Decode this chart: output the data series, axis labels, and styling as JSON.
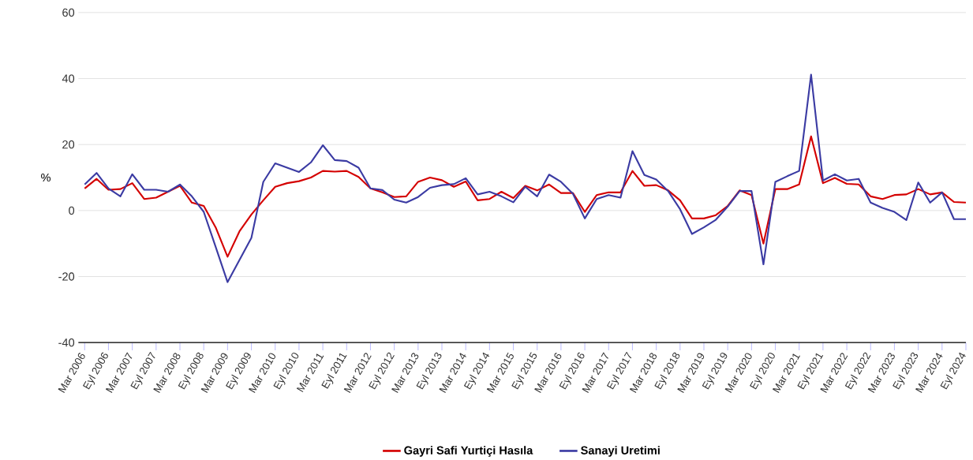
{
  "chart_data": {
    "type": "line",
    "ylabel": "%",
    "categories": [
      "Mar 2006",
      null,
      "Eyl 2006",
      null,
      "Mar 2007",
      null,
      "Eyl 2007",
      null,
      "Mar 2008",
      null,
      "Eyl 2008",
      null,
      "Mar 2009",
      null,
      "Eyl 2009",
      null,
      "Mar 2010",
      null,
      "Eyl 2010",
      null,
      "Mar 2011",
      null,
      "Eyl 2011",
      null,
      "Mar 2012",
      null,
      "Eyl 2012",
      null,
      "Mar 2013",
      null,
      "Eyl 2013",
      null,
      "Mar 2014",
      null,
      "Eyl 2014",
      null,
      "Mar 2015",
      null,
      "Eyl 2015",
      null,
      "Mar 2016",
      null,
      "Eyl 2016",
      null,
      "Mar 2017",
      null,
      "Eyl 2017",
      null,
      "Mar 2018",
      null,
      "Eyl 2018",
      null,
      "Mar 2019",
      null,
      "Eyl 2019",
      null,
      "Mar 2020",
      null,
      "Eyl 2020",
      null,
      "Mar 2021",
      null,
      "Eyl 2021",
      null,
      "Mar 2022",
      null,
      "Eyl 2022",
      null,
      "Mar 2023",
      null,
      "Eyl 2023",
      null,
      "Mar 2024",
      null,
      "Eyl 2024"
    ],
    "series": [
      {
        "name": "Gayri Safi Yurtiçi Hasıla",
        "color": "#d40000",
        "values": [
          6.7,
          9.6,
          6.3,
          6.5,
          8.3,
          3.5,
          3.9,
          5.7,
          7.5,
          2.4,
          1.4,
          -5.1,
          -14.0,
          -6.3,
          -1.2,
          3.1,
          7.2,
          8.3,
          8.9,
          10.0,
          12.0,
          11.8,
          12.0,
          10.2,
          6.7,
          5.5,
          4.1,
          4.3,
          8.7,
          10.0,
          9.2,
          7.2,
          8.8,
          3.1,
          3.5,
          5.7,
          3.8,
          7.5,
          6.1,
          7.9,
          5.3,
          5.3,
          -0.4,
          4.7,
          5.5,
          5.5,
          12.0,
          7.5,
          7.7,
          6.1,
          3.1,
          -2.4,
          -2.4,
          -1.4,
          1.4,
          6.1,
          4.7,
          -10.0,
          6.5,
          6.5,
          7.9,
          22.5,
          8.3,
          9.9,
          8.1,
          7.9,
          4.3,
          3.5,
          4.7,
          4.9,
          6.5,
          4.9,
          5.5,
          2.6,
          2.4
        ]
      },
      {
        "name": "Sanayi Uretimi",
        "color": "#3b3ba3",
        "values": [
          7.9,
          11.4,
          6.7,
          4.3,
          11.0,
          6.3,
          6.3,
          5.7,
          7.9,
          4.3,
          -0.4,
          -11.0,
          -21.7,
          -15.0,
          -8.3,
          8.7,
          14.3,
          13.0,
          11.7,
          14.6,
          19.8,
          15.3,
          15.0,
          13.0,
          6.7,
          6.2,
          3.3,
          2.4,
          4.1,
          6.9,
          7.7,
          8.0,
          9.8,
          4.9,
          5.7,
          4.3,
          2.5,
          7.2,
          4.3,
          10.9,
          8.7,
          5.1,
          -2.4,
          3.5,
          4.7,
          3.9,
          18.0,
          10.8,
          9.4,
          5.9,
          0.4,
          -7.1,
          -5.1,
          -2.8,
          1.2,
          5.9,
          5.9,
          -16.3,
          8.7,
          10.4,
          12.0,
          41.2,
          9.1,
          11.0,
          9.1,
          9.6,
          2.4,
          0.8,
          -0.4,
          -2.9,
          8.5,
          2.4,
          5.5,
          -2.6,
          -2.6
        ]
      }
    ],
    "ylim": [
      -40,
      60
    ],
    "yticks": [
      -40,
      -20,
      0,
      20,
      40,
      60
    ],
    "grid": "y",
    "legend": "bottom",
    "marker": "none",
    "line_style": "solid"
  }
}
